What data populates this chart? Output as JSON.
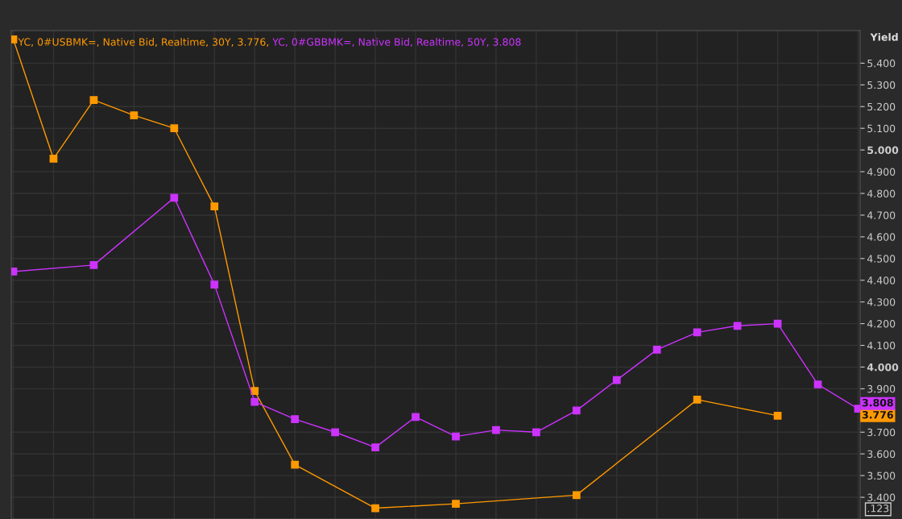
{
  "chart_data": {
    "type": "line",
    "ylabel": "Yield",
    "categories": [
      null,
      null,
      null,
      null,
      null,
      null,
      null,
      null,
      null,
      null,
      null,
      null,
      null,
      null,
      null,
      null,
      null,
      null,
      null,
      null,
      null,
      null
    ],
    "series": [
      {
        "name": "YC, 0#USBMK=, Native Bid, Realtime, 30Y, 3.776, ",
        "color": "#ff9900",
        "values": [
          5.51,
          4.96,
          5.23,
          5.16,
          5.1,
          4.74,
          3.89,
          3.55,
          null,
          3.35,
          null,
          3.37,
          null,
          null,
          3.41,
          null,
          null,
          3.85,
          null,
          3.776,
          null,
          null
        ]
      },
      {
        "name": "YC, 0#GBBMK=, Native Bid, Realtime, 50Y, 3.808",
        "color": "#cc33ff",
        "values": [
          4.44,
          null,
          4.47,
          null,
          4.78,
          4.38,
          3.84,
          3.76,
          3.7,
          3.63,
          3.77,
          3.68,
          3.71,
          3.7,
          3.8,
          3.94,
          4.08,
          4.16,
          4.19,
          4.2,
          3.92,
          3.808
        ]
      }
    ],
    "ylim": [
      3.3,
      5.55
    ],
    "yticks": [
      {
        "value": 3.4,
        "label": "3.400"
      },
      {
        "value": 3.5,
        "label": "3.500"
      },
      {
        "value": 3.6,
        "label": "3.600"
      },
      {
        "value": 3.7,
        "label": "3.700"
      },
      {
        "value": 3.9,
        "label": "3.900"
      },
      {
        "value": 4.0,
        "label": "4.000"
      },
      {
        "value": 4.1,
        "label": "4.100"
      },
      {
        "value": 4.2,
        "label": "4.200"
      },
      {
        "value": 4.3,
        "label": "4.300"
      },
      {
        "value": 4.4,
        "label": "4.400"
      },
      {
        "value": 4.5,
        "label": "4.500"
      },
      {
        "value": 4.6,
        "label": "4.600"
      },
      {
        "value": 4.7,
        "label": "4.700"
      },
      {
        "value": 4.8,
        "label": "4.800"
      },
      {
        "value": 4.9,
        "label": "4.900"
      },
      {
        "value": 5.0,
        "label": "5.000"
      },
      {
        "value": 5.1,
        "label": "5.100"
      },
      {
        "value": 5.2,
        "label": "5.200"
      },
      {
        "value": 5.3,
        "label": "5.300"
      },
      {
        "value": 5.4,
        "label": "5.400"
      }
    ],
    "annotations": [
      "3.808",
      "3.776",
      ".123"
    ],
    "grid": true,
    "legend": "top left",
    "marker": "square",
    "line_style": "solid"
  }
}
